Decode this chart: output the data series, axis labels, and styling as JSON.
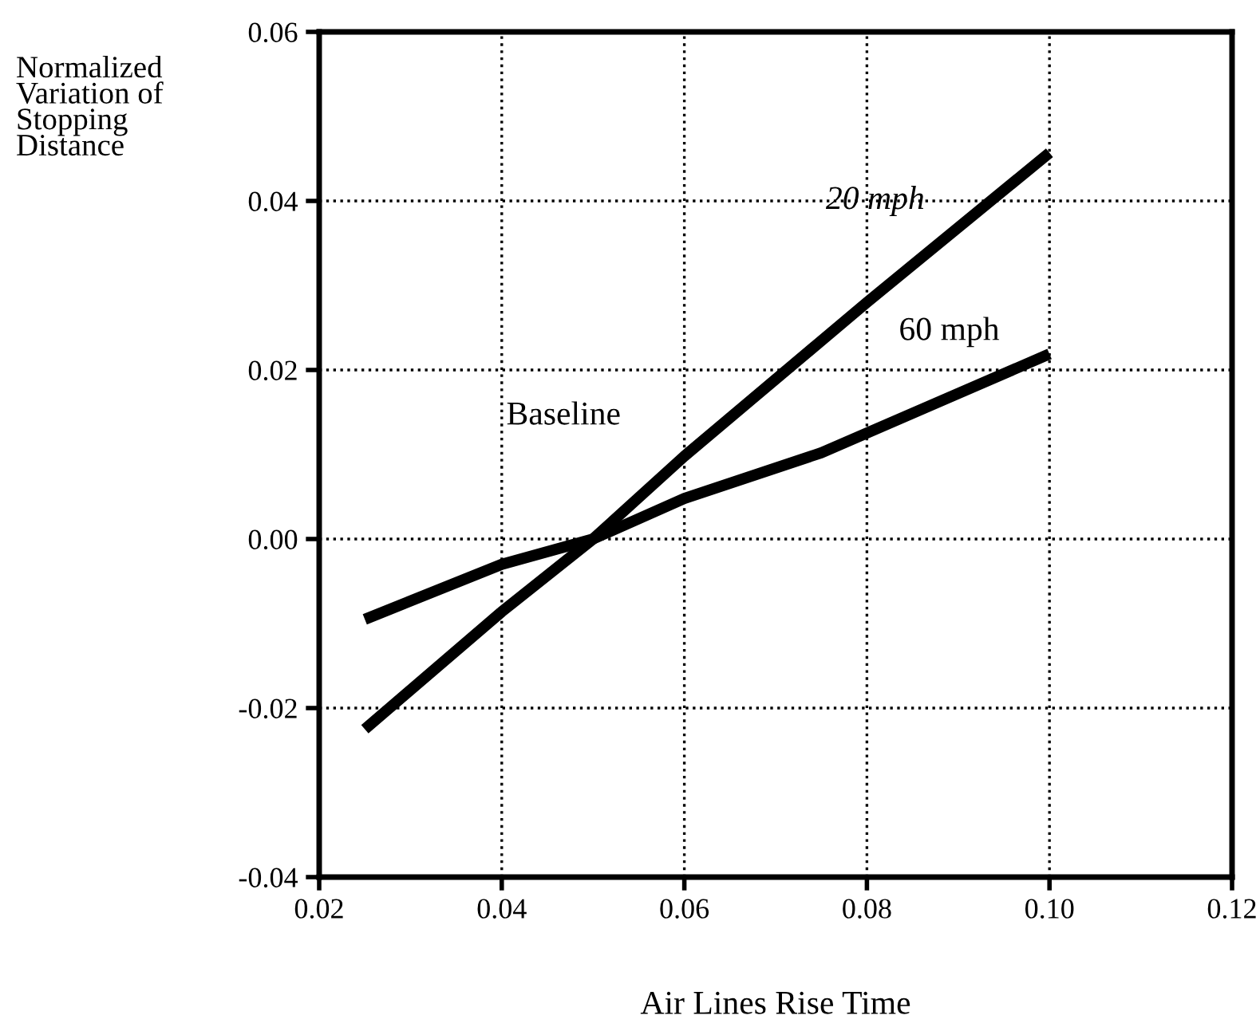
{
  "chart_data": {
    "type": "line",
    "xlabel": "Air Lines Rise Time",
    "ylabel": "Normalized\nVariation of\nStopping\nDistance",
    "series": [
      {
        "name": "20 mph",
        "color": "#000000",
        "x": [
          0.025,
          0.04,
          0.05,
          0.06,
          0.08,
          0.1
        ],
        "values": [
          -0.0225,
          -0.0086,
          0.0,
          0.0098,
          0.028,
          0.0457
        ]
      },
      {
        "name": "60 mph",
        "color": "#000000",
        "x": [
          0.025,
          0.04,
          0.05,
          0.06,
          0.075,
          0.1
        ],
        "values": [
          -0.0095,
          -0.003,
          0.0,
          0.0048,
          0.0102,
          0.0219
        ]
      }
    ],
    "annotations": [
      "Baseline"
    ],
    "xlim": [
      0.02,
      0.12
    ],
    "xticks": [
      {
        "value": 0.02,
        "label": "0.02"
      },
      {
        "value": 0.04,
        "label": "0.04"
      },
      {
        "value": 0.06,
        "label": "0.06"
      },
      {
        "value": 0.08,
        "label": "0.08"
      },
      {
        "value": 0.1,
        "label": "0.10"
      },
      {
        "value": 0.12,
        "label": "0.12"
      }
    ],
    "ylim": [
      -0.04,
      0.06
    ],
    "yticks": [
      {
        "value": -0.04,
        "label": "-0.04"
      },
      {
        "value": -0.02,
        "label": "-0.02"
      },
      {
        "value": 0.0,
        "label": "0.00"
      },
      {
        "value": 0.02,
        "label": "0.02"
      },
      {
        "value": 0.04,
        "label": "0.04"
      },
      {
        "value": 0.06,
        "label": "0.06"
      }
    ],
    "grid": true,
    "line_style": "solid",
    "marker": "none"
  }
}
